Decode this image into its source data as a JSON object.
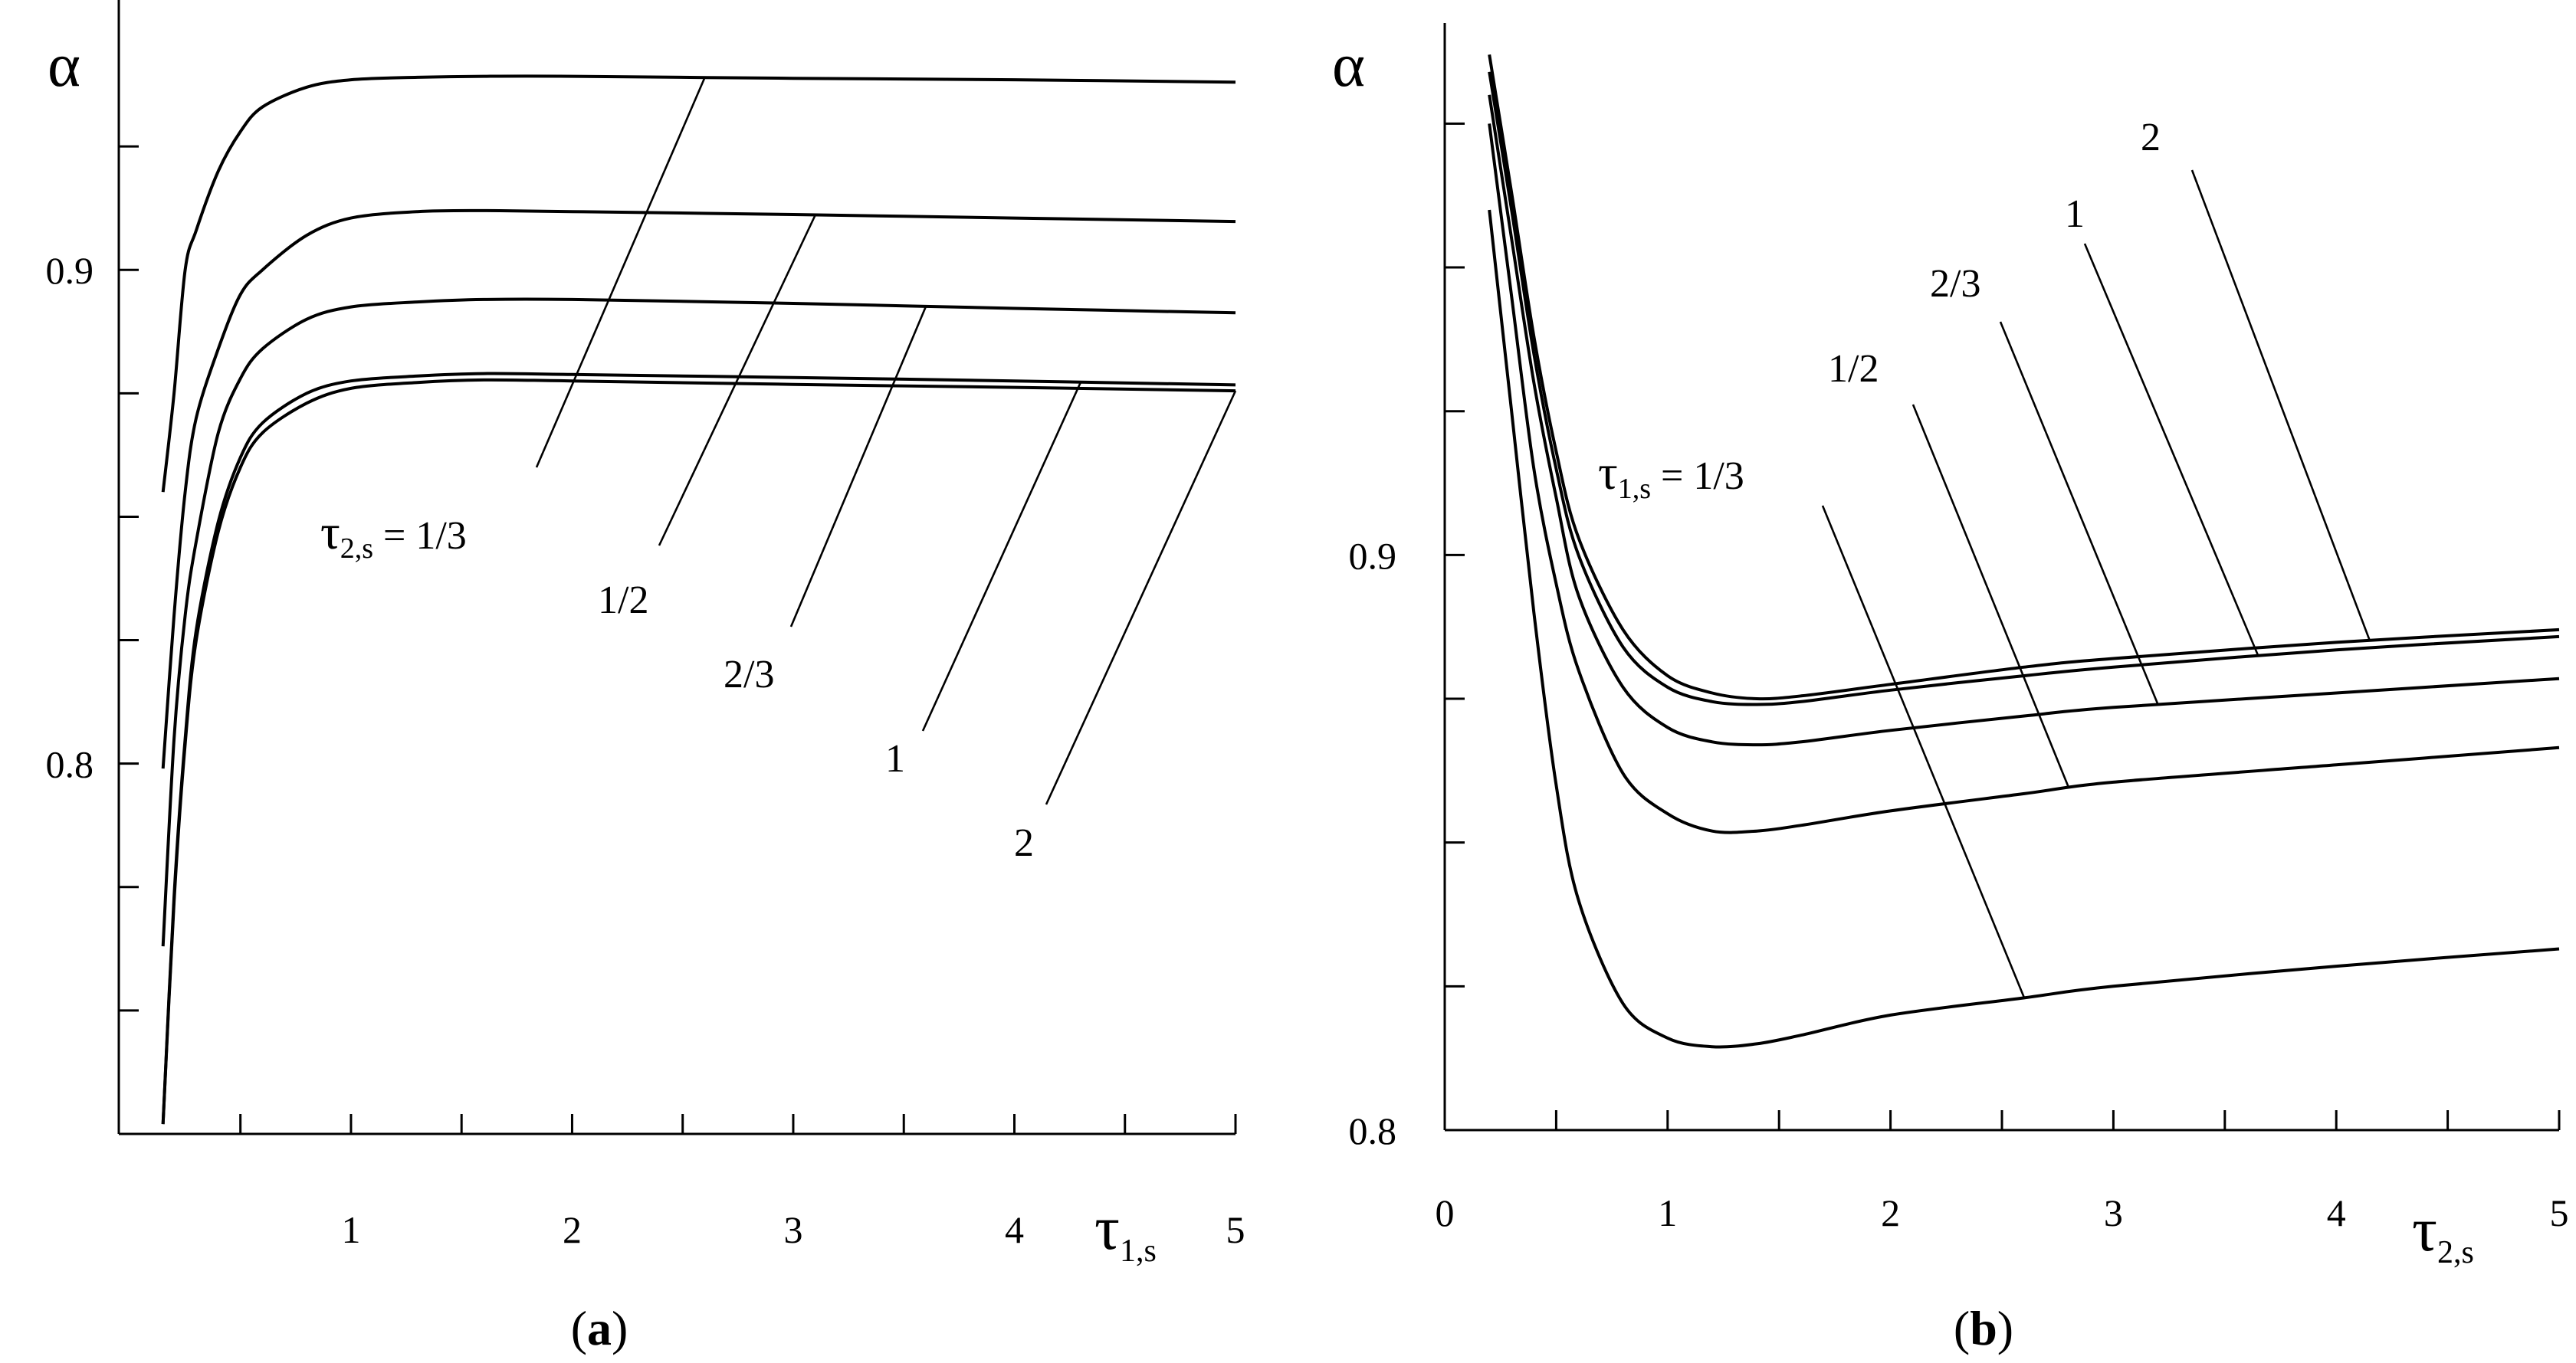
{
  "chart_data": [
    {
      "type": "line",
      "panel_label": {
        "open": "(",
        "letter": "a",
        "close": ")"
      },
      "ylabel": {
        "main": "α"
      },
      "xlabel": {
        "main": "τ",
        "sub": "1,s"
      },
      "xlim": [
        -0.05,
        5
      ],
      "ylim": [
        0.725,
        0.95
      ],
      "xticks": [
        0.5,
        1,
        1.5,
        2,
        2.5,
        3,
        3.5,
        4,
        4.5,
        5
      ],
      "xtick_labels": [
        {
          "x": 1,
          "text": "1"
        },
        {
          "x": 2,
          "text": "2"
        },
        {
          "x": 3,
          "text": "3"
        },
        {
          "x": 4,
          "text": "4"
        },
        {
          "x": 5,
          "text": "5"
        }
      ],
      "yticks": [
        0.75,
        0.775,
        0.8,
        0.825,
        0.85,
        0.875,
        0.9,
        0.925
      ],
      "ytick_labels": [
        {
          "y": 0.8,
          "text": "0.8"
        },
        {
          "y": 0.9,
          "text": "0.9"
        }
      ],
      "series": [
        {
          "name": "1/3",
          "label_text": "τ",
          "label_sub": "2,s",
          "label_tail": " = 1/3",
          "x": [
            0.15,
            0.2,
            0.25,
            0.3,
            0.4,
            0.5,
            0.6,
            0.8,
            1,
            1.3,
            1.6,
            2,
            3,
            4,
            5
          ],
          "y": [
            0.855,
            0.875,
            0.9,
            0.908,
            0.92,
            0.928,
            0.933,
            0.937,
            0.9385,
            0.939,
            0.9392,
            0.9392,
            0.9388,
            0.9385,
            0.938
          ]
        },
        {
          "name": "1/2",
          "label_text": "1/2",
          "x": [
            0.15,
            0.2,
            0.25,
            0.3,
            0.4,
            0.5,
            0.6,
            0.8,
            1,
            1.3,
            1.6,
            2,
            3,
            4,
            5
          ],
          "y": [
            0.799,
            0.83,
            0.855,
            0.87,
            0.884,
            0.895,
            0.9,
            0.907,
            0.9105,
            0.9118,
            0.912,
            0.9118,
            0.9112,
            0.9105,
            0.9098
          ]
        },
        {
          "name": "2/3",
          "label_text": "2/3",
          "x": [
            0.15,
            0.2,
            0.25,
            0.3,
            0.4,
            0.5,
            0.6,
            0.8,
            1,
            1.3,
            1.6,
            2,
            3,
            4,
            5
          ],
          "y": [
            0.763,
            0.805,
            0.83,
            0.845,
            0.867,
            0.878,
            0.884,
            0.89,
            0.8925,
            0.8935,
            0.894,
            0.894,
            0.8932,
            0.8922,
            0.8913
          ]
        },
        {
          "name": "1",
          "label_text": "1",
          "x": [
            0.15,
            0.2,
            0.25,
            0.3,
            0.4,
            0.5,
            0.6,
            0.8,
            1,
            1.3,
            1.6,
            2,
            3,
            4,
            5
          ],
          "y": [
            0.727,
            0.773,
            0.805,
            0.827,
            0.849,
            0.862,
            0.869,
            0.875,
            0.8775,
            0.8785,
            0.879,
            0.8788,
            0.8782,
            0.8775,
            0.8767
          ]
        },
        {
          "name": "2",
          "label_text": "2",
          "x": [
            0.15,
            0.2,
            0.25,
            0.3,
            0.4,
            0.5,
            0.6,
            0.8,
            1,
            1.3,
            1.6,
            2,
            3,
            4,
            5
          ],
          "y": [
            0.727,
            0.772,
            0.804,
            0.825,
            0.847,
            0.86,
            0.867,
            0.873,
            0.876,
            0.8772,
            0.8777,
            0.8775,
            0.8768,
            0.8762,
            0.8755
          ]
        }
      ]
    },
    {
      "type": "line",
      "panel_label": {
        "open": "(",
        "letter": "b",
        "close": ")"
      },
      "ylabel": {
        "main": "α"
      },
      "xlabel": {
        "main": "τ",
        "sub": "2,s"
      },
      "xlim": [
        0,
        5
      ],
      "ylim": [
        0.8,
        0.9925
      ],
      "xticks": [
        0,
        0.5,
        1,
        1.5,
        2,
        2.5,
        3,
        3.5,
        4,
        4.5,
        5
      ],
      "xtick_labels": [
        {
          "x": 0,
          "text": "0"
        },
        {
          "x": 1,
          "text": "1"
        },
        {
          "x": 2,
          "text": "2"
        },
        {
          "x": 3,
          "text": "3"
        },
        {
          "x": 4,
          "text": "4"
        },
        {
          "x": 5,
          "text": "5"
        }
      ],
      "yticks": [
        0.8,
        0.825,
        0.85,
        0.875,
        0.9,
        0.925,
        0.95,
        0.975
      ],
      "ytick_labels": [
        {
          "y": 0.8,
          "text": "0.8"
        },
        {
          "y": 0.9,
          "text": "0.9"
        }
      ],
      "series": [
        {
          "name": "1/3",
          "label_text": "τ",
          "label_sub": "1,s",
          "label_tail": " = 1/3",
          "x": [
            0.2,
            0.3,
            0.4,
            0.5,
            0.6,
            0.8,
            1,
            1.2,
            1.4,
            1.6,
            2,
            2.6,
            3,
            4,
            5
          ],
          "y": [
            0.96,
            0.925,
            0.89,
            0.86,
            0.84,
            0.822,
            0.816,
            0.8145,
            0.815,
            0.8165,
            0.82,
            0.823,
            0.825,
            0.8285,
            0.8315
          ]
        },
        {
          "name": "1/2",
          "label_text": "1/2",
          "x": [
            0.2,
            0.3,
            0.4,
            0.5,
            0.6,
            0.8,
            1,
            1.2,
            1.4,
            1.6,
            2,
            2.6,
            3,
            4,
            5
          ],
          "y": [
            0.975,
            0.945,
            0.915,
            0.895,
            0.88,
            0.862,
            0.855,
            0.852,
            0.852,
            0.853,
            0.8555,
            0.8585,
            0.8605,
            0.8635,
            0.8665
          ]
        },
        {
          "name": "2/3",
          "label_text": "2/3",
          "x": [
            0.2,
            0.3,
            0.4,
            0.5,
            0.6,
            0.8,
            1,
            1.2,
            1.4,
            1.6,
            2,
            2.6,
            3,
            4,
            5
          ],
          "y": [
            0.98,
            0.955,
            0.93,
            0.91,
            0.893,
            0.877,
            0.87,
            0.8675,
            0.867,
            0.8675,
            0.8695,
            0.872,
            0.8735,
            0.876,
            0.8785
          ]
        },
        {
          "name": "1",
          "label_text": "1",
          "x": [
            0.2,
            0.3,
            0.4,
            0.5,
            0.6,
            0.8,
            1,
            1.2,
            1.4,
            1.6,
            2,
            2.6,
            3,
            4,
            5
          ],
          "y": [
            0.984,
            0.96,
            0.935,
            0.915,
            0.9,
            0.884,
            0.877,
            0.8745,
            0.874,
            0.8745,
            0.8765,
            0.879,
            0.8805,
            0.8835,
            0.8858
          ]
        },
        {
          "name": "2",
          "label_text": "2",
          "x": [
            0.2,
            0.3,
            0.4,
            0.5,
            0.6,
            0.8,
            1,
            1.2,
            1.4,
            1.6,
            2,
            2.6,
            3,
            4,
            5
          ],
          "y": [
            0.987,
            0.963,
            0.938,
            0.918,
            0.903,
            0.887,
            0.879,
            0.876,
            0.875,
            0.8755,
            0.8775,
            0.8805,
            0.882,
            0.8848,
            0.887
          ]
        }
      ]
    }
  ]
}
